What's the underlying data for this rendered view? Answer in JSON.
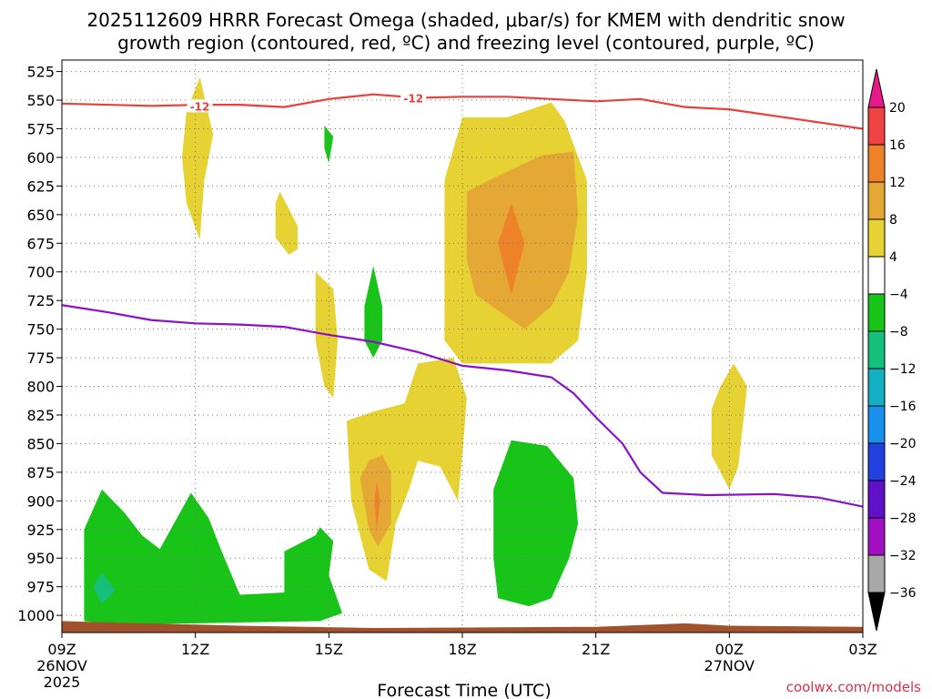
{
  "chart_data": {
    "type": "contour_time_height",
    "title_line1": "2025112609 HRRR Forecast Omega (shaded, μbar/s) for KMEM with dendritic snow",
    "title_line2": "growth region (contoured, red, ºC) and freezing level (contoured, purple, ºC)",
    "xlabel": "Forecast Time (UTC)",
    "credit": "coolwx.com/models",
    "x_range_hours": [
      9,
      27
    ],
    "y_range_hpa": [
      1015,
      515
    ],
    "y_ticks": [
      525,
      550,
      575,
      600,
      625,
      650,
      675,
      700,
      725,
      750,
      775,
      800,
      825,
      850,
      875,
      900,
      925,
      950,
      975,
      1000
    ],
    "x_ticks": [
      {
        "hour": 9,
        "label": "09Z",
        "sub1": "26NOV",
        "sub2": "2025"
      },
      {
        "hour": 12,
        "label": "12Z",
        "sub1": "",
        "sub2": ""
      },
      {
        "hour": 15,
        "label": "15Z",
        "sub1": "",
        "sub2": ""
      },
      {
        "hour": 18,
        "label": "18Z",
        "sub1": "",
        "sub2": ""
      },
      {
        "hour": 21,
        "label": "21Z",
        "sub1": "",
        "sub2": ""
      },
      {
        "hour": 24,
        "label": "00Z",
        "sub1": "27NOV",
        "sub2": ""
      },
      {
        "hour": 27,
        "label": "03Z",
        "sub1": "",
        "sub2": ""
      }
    ],
    "colorbar": {
      "labels": [
        "20",
        "16",
        "12",
        "8",
        "4",
        "−4",
        "−8",
        "−12",
        "−16",
        "−20",
        "−24",
        "−28",
        "−32",
        "−36"
      ],
      "colors": [
        "#e61a4d",
        "#f04444",
        "#ee8228",
        "#e6a834",
        "#e6d232",
        "#ffffff",
        "#18c418",
        "#14c07c",
        "#14b0c4",
        "#1890ee",
        "#2040e0",
        "#6010c8",
        "#a010c0",
        "#a8a8a8",
        "#000000"
      ],
      "top_triangle_color": "#e61a8a",
      "bottom_triangle_color": "#000000"
    },
    "dgz_line": {
      "color": "#e8403a",
      "label": "-12",
      "points": [
        [
          9,
          553
        ],
        [
          11,
          555
        ],
        [
          12.1,
          554
        ],
        [
          13,
          554
        ],
        [
          14,
          556
        ],
        [
          15,
          549
        ],
        [
          16,
          545
        ],
        [
          17,
          548
        ],
        [
          18,
          547
        ],
        [
          19,
          547
        ],
        [
          20,
          549
        ],
        [
          21,
          551
        ],
        [
          22,
          549
        ],
        [
          23,
          556
        ],
        [
          24,
          558
        ],
        [
          27,
          575
        ]
      ],
      "label_positions": [
        [
          12.1,
          555
        ],
        [
          16.9,
          548
        ]
      ]
    },
    "freezing_line": {
      "color": "#8c10c8",
      "points": [
        [
          9,
          729
        ],
        [
          10,
          735
        ],
        [
          11,
          742
        ],
        [
          12,
          745
        ],
        [
          13,
          746
        ],
        [
          14,
          748
        ],
        [
          15,
          755
        ],
        [
          16,
          761
        ],
        [
          17,
          770
        ],
        [
          18,
          782
        ],
        [
          19,
          786
        ],
        [
          20,
          792
        ],
        [
          20.5,
          806
        ],
        [
          21,
          827
        ],
        [
          21.6,
          850
        ],
        [
          22,
          875
        ],
        [
          22.5,
          893
        ],
        [
          23.5,
          895
        ],
        [
          25,
          894
        ],
        [
          26,
          897
        ],
        [
          27,
          905
        ]
      ]
    },
    "omega_regions": [
      {
        "value_range": "4 to 8",
        "color": "#e6d232",
        "polygon": [
          [
            12.1,
            530
          ],
          [
            12.4,
            580
          ],
          [
            12.2,
            620
          ],
          [
            12.1,
            672
          ],
          [
            11.8,
            640
          ],
          [
            11.7,
            600
          ],
          [
            11.8,
            560
          ]
        ]
      },
      {
        "value_range": "4 to 8",
        "color": "#e6d232",
        "polygon": [
          [
            13.9,
            630
          ],
          [
            14.3,
            660
          ],
          [
            14.3,
            680
          ],
          [
            14.1,
            685
          ],
          [
            13.8,
            670
          ],
          [
            13.8,
            640
          ]
        ]
      },
      {
        "value_range": "4 to 8",
        "color": "#e6d232",
        "polygon": [
          [
            14.7,
            700
          ],
          [
            15.1,
            715
          ],
          [
            15.2,
            760
          ],
          [
            15.1,
            810
          ],
          [
            14.9,
            800
          ],
          [
            14.7,
            760
          ]
        ]
      },
      {
        "value_range": "4 to 8",
        "color": "#e6d232",
        "polygon": [
          [
            18,
            565
          ],
          [
            19,
            565
          ],
          [
            20,
            552
          ],
          [
            20.3,
            568
          ],
          [
            20.8,
            620
          ],
          [
            20.8,
            700
          ],
          [
            20.6,
            760
          ],
          [
            20,
            780
          ],
          [
            18,
            780
          ],
          [
            17.6,
            760
          ],
          [
            17.6,
            620
          ]
        ]
      },
      {
        "value_range": "4 to 8",
        "color": "#e6d232",
        "polygon": [
          [
            17,
            780
          ],
          [
            17.8,
            775
          ],
          [
            18.1,
            810
          ],
          [
            18,
            860
          ],
          [
            17.9,
            900
          ],
          [
            17.5,
            870
          ],
          [
            17,
            865
          ],
          [
            16.8,
            890
          ],
          [
            16.5,
            920
          ],
          [
            16.3,
            970
          ],
          [
            15.9,
            960
          ],
          [
            15.5,
            900
          ],
          [
            15.4,
            830
          ],
          [
            16,
            822
          ],
          [
            16.7,
            815
          ]
        ]
      },
      {
        "value_range": "4 to 8",
        "color": "#e6d232",
        "polygon": [
          [
            24.1,
            780
          ],
          [
            24.4,
            800
          ],
          [
            24.2,
            870
          ],
          [
            24,
            890
          ],
          [
            23.6,
            860
          ],
          [
            23.6,
            820
          ],
          [
            23.8,
            800
          ]
        ]
      },
      {
        "value_range": "8 to 12",
        "color": "#e6a834",
        "polygon": [
          [
            19.8,
            598
          ],
          [
            20.5,
            595
          ],
          [
            20.6,
            650
          ],
          [
            20.4,
            700
          ],
          [
            20,
            730
          ],
          [
            19.4,
            750
          ],
          [
            18.3,
            720
          ],
          [
            18.1,
            690
          ],
          [
            18.1,
            630
          ],
          [
            18.7,
            618
          ]
        ]
      },
      {
        "value_range": "8 to 12",
        "color": "#e6a834",
        "polygon": [
          [
            15.9,
            865
          ],
          [
            16.2,
            860
          ],
          [
            16.4,
            875
          ],
          [
            16.4,
            920
          ],
          [
            16.1,
            940
          ],
          [
            15.9,
            925
          ],
          [
            15.7,
            880
          ]
        ]
      },
      {
        "value_range": "12 to 16",
        "color": "#ee8228",
        "polygon": [
          [
            19.1,
            640
          ],
          [
            19.4,
            675
          ],
          [
            19.1,
            720
          ],
          [
            18.8,
            675
          ]
        ]
      },
      {
        "value_range": "12 to 16",
        "color": "#ee8228",
        "polygon": [
          [
            16.08,
            883
          ],
          [
            16.15,
            900
          ],
          [
            16.08,
            925
          ],
          [
            16.02,
            900
          ]
        ]
      },
      {
        "value_range": "-4 to -8",
        "color": "#18c418",
        "polygon": [
          [
            14.9,
            572
          ],
          [
            15.1,
            582
          ],
          [
            15,
            605
          ],
          [
            14.9,
            592
          ]
        ]
      },
      {
        "value_range": "-4 to -8",
        "color": "#18c418",
        "polygon": [
          [
            16,
            695
          ],
          [
            16.2,
            730
          ],
          [
            16.2,
            760
          ],
          [
            16,
            775
          ],
          [
            15.8,
            760
          ],
          [
            15.8,
            730
          ]
        ]
      },
      {
        "value_range": "-4 to -8",
        "color": "#18c418",
        "polygon": [
          [
            19.1,
            847
          ],
          [
            19.9,
            852
          ],
          [
            20.5,
            880
          ],
          [
            20.6,
            920
          ],
          [
            20.4,
            950
          ],
          [
            20,
            985
          ],
          [
            19.5,
            992
          ],
          [
            18.8,
            985
          ],
          [
            18.7,
            950
          ],
          [
            18.7,
            890
          ]
        ]
      },
      {
        "value_range": "-4 to -8",
        "color": "#18c418",
        "polygon": [
          [
            9.5,
            925
          ],
          [
            9.9,
            890
          ],
          [
            10.4,
            910
          ],
          [
            10.8,
            930
          ],
          [
            11.2,
            942
          ],
          [
            11.9,
            893
          ],
          [
            12.3,
            915
          ],
          [
            12.6,
            945
          ],
          [
            13,
            982
          ],
          [
            14,
            980
          ],
          [
            14,
            944
          ],
          [
            14.7,
            930
          ],
          [
            14.8,
            923
          ],
          [
            15.1,
            935
          ],
          [
            15,
            965
          ],
          [
            15.3,
            998
          ],
          [
            14.8,
            1005
          ],
          [
            12,
            1007
          ],
          [
            10.2,
            1008
          ],
          [
            9.5,
            1005
          ],
          [
            9.5,
            980
          ]
        ]
      },
      {
        "value_range": "-8 to -12",
        "color": "#14c07c",
        "polygon": [
          [
            9.9,
            963
          ],
          [
            10.2,
            978
          ],
          [
            9.9,
            990
          ],
          [
            9.7,
            975
          ]
        ]
      }
    ],
    "terrain": {
      "color": "#a0522d",
      "points": [
        [
          9,
          1005
        ],
        [
          10,
          1006
        ],
        [
          13,
          1009
        ],
        [
          16,
          1011
        ],
        [
          21,
          1010
        ],
        [
          23,
          1007
        ],
        [
          24,
          1009
        ],
        [
          27,
          1010
        ]
      ],
      "bottom_hpa": 1015
    }
  }
}
